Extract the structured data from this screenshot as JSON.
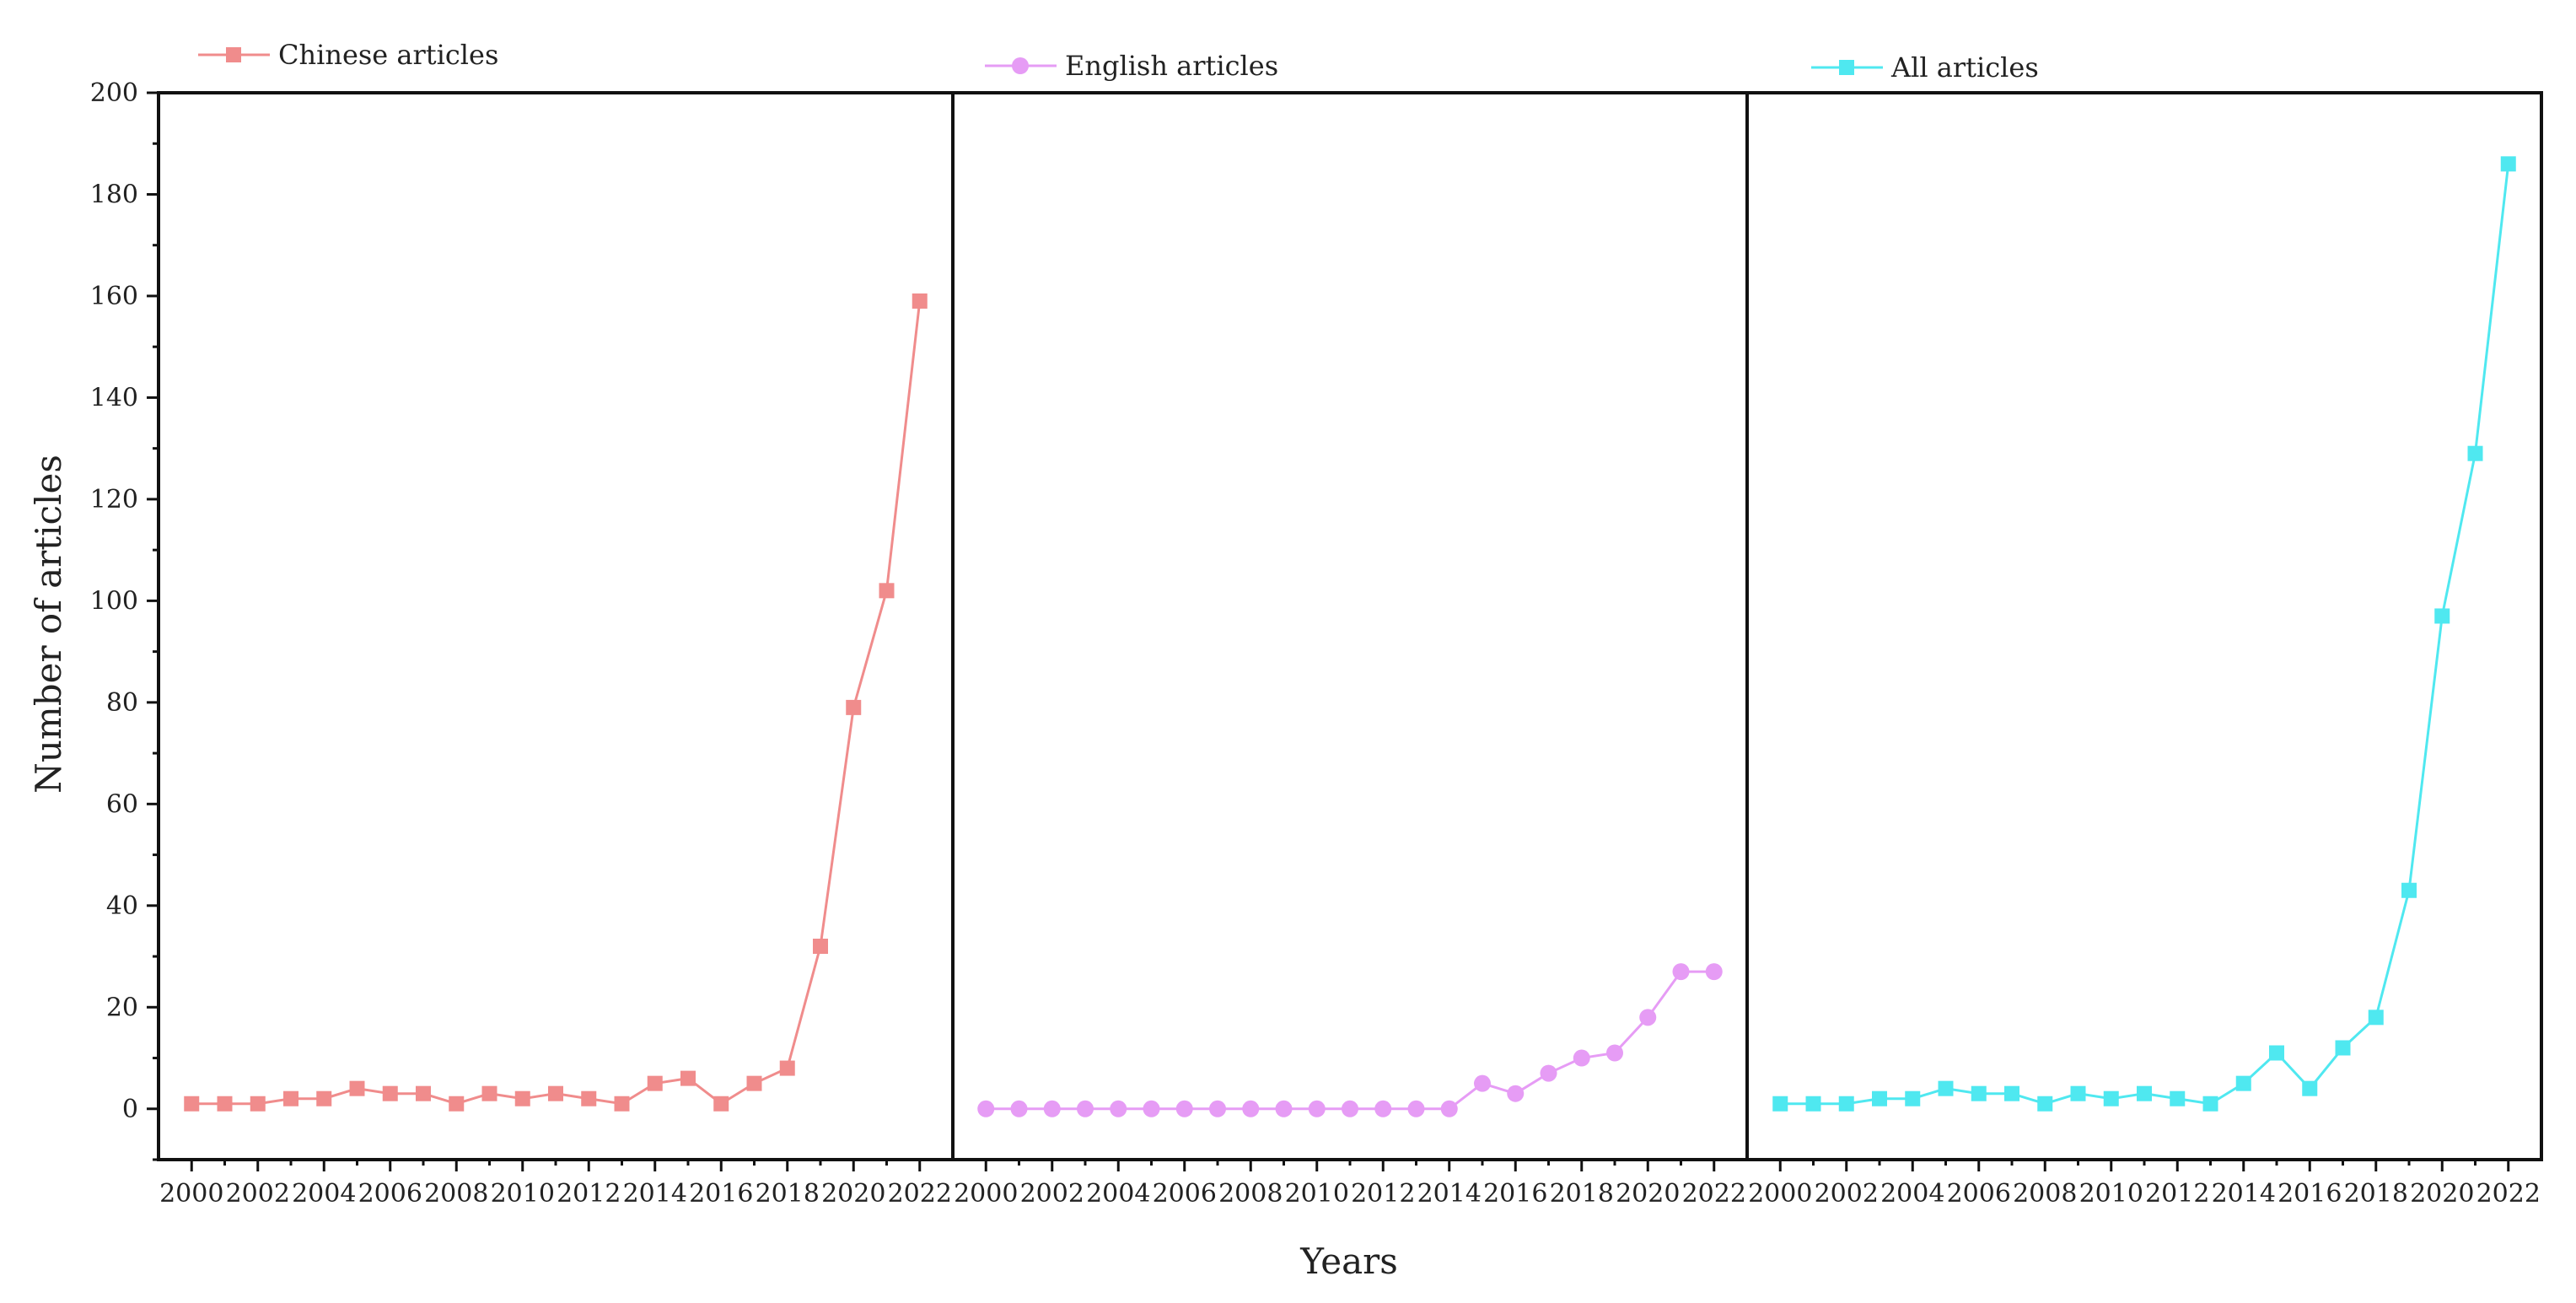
{
  "chart_data": {
    "type": "line",
    "ylabel": "Number of articles",
    "xlabel": "Years",
    "ylim": [
      -10,
      200
    ],
    "yticks": [
      0,
      20,
      40,
      60,
      80,
      100,
      120,
      140,
      160,
      180,
      200
    ],
    "xlim": [
      1999,
      2023
    ],
    "xticks": [
      2000,
      2002,
      2004,
      2006,
      2008,
      2010,
      2012,
      2014,
      2016,
      2018,
      2020,
      2022
    ],
    "x": [
      2000,
      2001,
      2002,
      2003,
      2004,
      2005,
      2006,
      2007,
      2008,
      2009,
      2010,
      2011,
      2012,
      2013,
      2014,
      2015,
      2016,
      2017,
      2018,
      2019,
      2020,
      2021,
      2022
    ],
    "grid": false,
    "legend_position": "top",
    "panels": [
      {
        "series": {
          "name": "Chinese articles",
          "marker": "square",
          "color": "#F08C8C",
          "values": [
            1,
            1,
            1,
            2,
            2,
            4,
            3,
            3,
            1,
            3,
            2,
            3,
            2,
            1,
            5,
            6,
            1,
            5,
            8,
            32,
            79,
            102,
            159
          ]
        }
      },
      {
        "series": {
          "name": "English articles",
          "marker": "circle",
          "color": "#E69CF5",
          "values": [
            0,
            0,
            0,
            0,
            0,
            0,
            0,
            0,
            0,
            0,
            0,
            0,
            0,
            0,
            0,
            5,
            3,
            7,
            10,
            11,
            18,
            27,
            27
          ]
        }
      },
      {
        "series": {
          "name": "All articles",
          "marker": "square",
          "color": "#4FE8F0",
          "values": [
            1,
            1,
            1,
            2,
            2,
            4,
            3,
            3,
            1,
            3,
            2,
            3,
            2,
            1,
            5,
            11,
            4,
            12,
            18,
            43,
            97,
            129,
            186
          ]
        }
      }
    ]
  }
}
